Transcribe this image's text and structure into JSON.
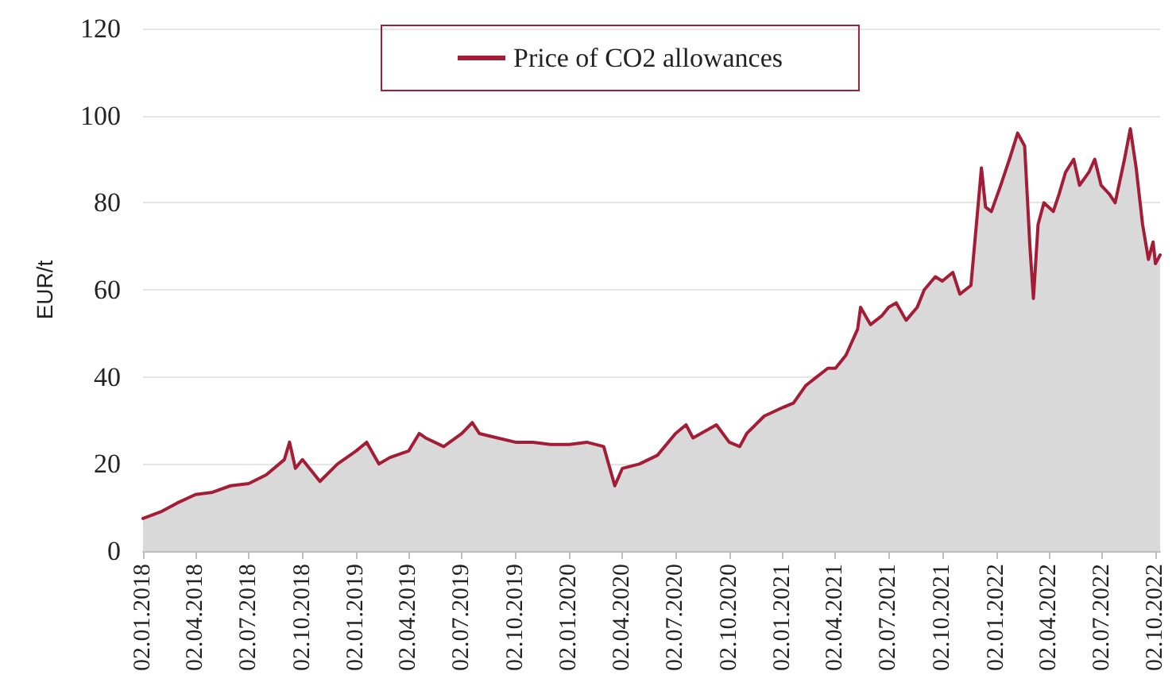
{
  "chart_data": {
    "type": "area",
    "ylabel": "EUR/t",
    "legend": "top",
    "grid": "y",
    "marker": "none",
    "line_style": "solid",
    "xlim": [
      "2018-01-02",
      "2022-10-10"
    ],
    "xticks": [
      {
        "value": "2018-01-02",
        "label": "02.01.2018"
      },
      {
        "value": "2018-04-02",
        "label": "02.04.2018"
      },
      {
        "value": "2018-07-02",
        "label": "02.07.2018"
      },
      {
        "value": "2018-10-02",
        "label": "02.10.2018"
      },
      {
        "value": "2019-01-02",
        "label": "02.01.2019"
      },
      {
        "value": "2019-04-02",
        "label": "02.04.2019"
      },
      {
        "value": "2019-07-02",
        "label": "02.07.2019"
      },
      {
        "value": "2019-10-02",
        "label": "02.10.2019"
      },
      {
        "value": "2020-01-02",
        "label": "02.01.2020"
      },
      {
        "value": "2020-04-02",
        "label": "02.04.2020"
      },
      {
        "value": "2020-07-02",
        "label": "02.07.2020"
      },
      {
        "value": "2020-10-02",
        "label": "02.10.2020"
      },
      {
        "value": "2021-01-02",
        "label": "02.01.2021"
      },
      {
        "value": "2021-04-02",
        "label": "02.04.2021"
      },
      {
        "value": "2021-07-02",
        "label": "02.07.2021"
      },
      {
        "value": "2021-10-02",
        "label": "02.10.2021"
      },
      {
        "value": "2022-01-02",
        "label": "02.01.2022"
      },
      {
        "value": "2022-04-02",
        "label": "02.04.2022"
      },
      {
        "value": "2022-07-02",
        "label": "02.07.2022"
      },
      {
        "value": "2022-10-02",
        "label": "02.10.2022"
      }
    ],
    "ylim": [
      0,
      120
    ],
    "yticks": [
      0,
      20,
      40,
      60,
      80,
      100,
      120
    ],
    "series": [
      {
        "name": "Price of CO2 allowances",
        "color": "#a31d37",
        "x": [
          "2018-01-02",
          "2018-02-01",
          "2018-03-01",
          "2018-04-02",
          "2018-05-01",
          "2018-06-01",
          "2018-07-02",
          "2018-08-01",
          "2018-09-01",
          "2018-09-10",
          "2018-09-20",
          "2018-10-02",
          "2018-11-01",
          "2018-12-01",
          "2019-01-02",
          "2019-01-20",
          "2019-02-10",
          "2019-03-01",
          "2019-04-02",
          "2019-04-20",
          "2019-05-01",
          "2019-06-01",
          "2019-07-02",
          "2019-07-20",
          "2019-08-01",
          "2019-09-01",
          "2019-10-02",
          "2019-11-01",
          "2019-12-01",
          "2020-01-02",
          "2020-02-01",
          "2020-03-01",
          "2020-03-20",
          "2020-04-02",
          "2020-05-01",
          "2020-06-01",
          "2020-07-02",
          "2020-07-20",
          "2020-08-01",
          "2020-09-10",
          "2020-10-02",
          "2020-10-20",
          "2020-11-01",
          "2020-12-01",
          "2021-01-02",
          "2021-01-20",
          "2021-02-10",
          "2021-03-01",
          "2021-03-20",
          "2021-04-02",
          "2021-04-20",
          "2021-05-10",
          "2021-05-15",
          "2021-06-01",
          "2021-06-20",
          "2021-07-02",
          "2021-07-15",
          "2021-08-01",
          "2021-08-20",
          "2021-09-01",
          "2021-09-20",
          "2021-10-02",
          "2021-10-20",
          "2021-11-01",
          "2021-11-20",
          "2021-12-08",
          "2021-12-15",
          "2021-12-25",
          "2022-01-10",
          "2022-01-25",
          "2022-02-08",
          "2022-02-20",
          "2022-03-01",
          "2022-03-07",
          "2022-03-15",
          "2022-03-25",
          "2022-04-10",
          "2022-04-20",
          "2022-05-01",
          "2022-05-15",
          "2022-05-25",
          "2022-06-10",
          "2022-06-20",
          "2022-07-01",
          "2022-07-15",
          "2022-07-25",
          "2022-08-10",
          "2022-08-20",
          "2022-08-30",
          "2022-09-10",
          "2022-09-20",
          "2022-09-28",
          "2022-10-02",
          "2022-10-10"
        ],
        "values": [
          7.5,
          9,
          11,
          13,
          13.5,
          15,
          15.5,
          17.5,
          21,
          25,
          19,
          21,
          16,
          20,
          23,
          25,
          20,
          21.5,
          23,
          27,
          26,
          24,
          27,
          29.5,
          27,
          26,
          25,
          25,
          24.5,
          24.5,
          25,
          24,
          15,
          19,
          20,
          22,
          27,
          29,
          26,
          29,
          25,
          24,
          27,
          31,
          33,
          34,
          38,
          40,
          42,
          42,
          45,
          51,
          56,
          52,
          54,
          56,
          57,
          53,
          56,
          60,
          63,
          62,
          64,
          59,
          61,
          88,
          79,
          78,
          84,
          90,
          96,
          93,
          70,
          58,
          75,
          80,
          78,
          82,
          87,
          90,
          84,
          87,
          90,
          84,
          82,
          80,
          90,
          97,
          88,
          75,
          67,
          71,
          66,
          68
        ]
      }
    ]
  }
}
